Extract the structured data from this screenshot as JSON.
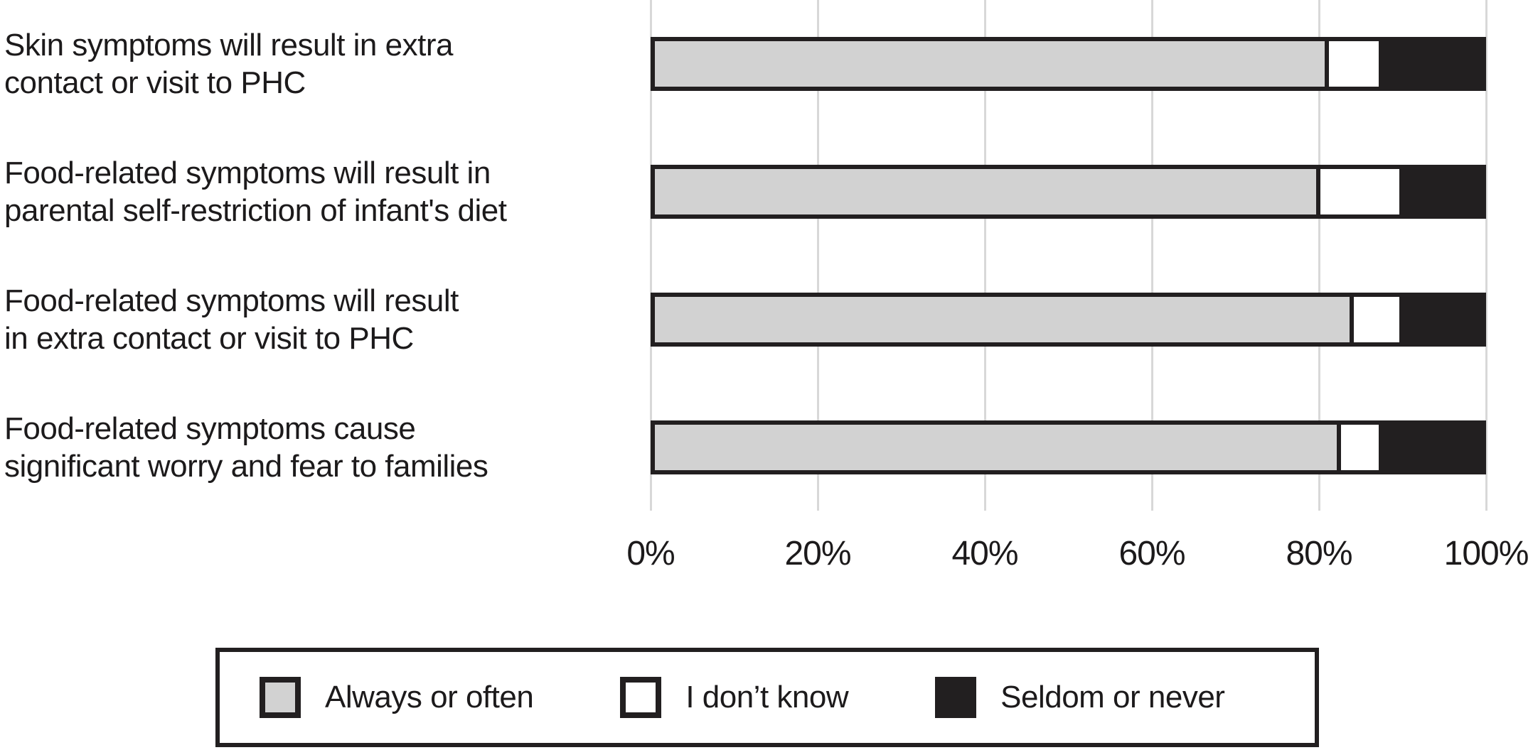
{
  "figure": {
    "description": "Horizontal stacked bar chart of survey agreement statements about infant symptoms, with legend"
  },
  "chart_data": {
    "type": "bar",
    "orientation": "horizontal-stacked",
    "title": "",
    "xlabel": "",
    "ylabel": "",
    "xlim": [
      0,
      100
    ],
    "grid": "vertical",
    "legend_position": "bottom-boxed",
    "categories": [
      {
        "lines": [
          "Skin symptoms will result in extra",
          "contact or visit to PHC"
        ]
      },
      {
        "lines": [
          "Food-related symptoms will result in",
          "parental self-restriction of infant's diet"
        ]
      },
      {
        "lines": [
          "Food-related symptoms will result",
          "in extra contact or visit to PHC"
        ]
      },
      {
        "lines": [
          "Food-related symptoms cause",
          "significant worry and fear to families"
        ]
      }
    ],
    "series": [
      {
        "name": "Always or often",
        "color": "#d2d2d2",
        "values": [
          81,
          80,
          84,
          82.5
        ]
      },
      {
        "name": "I don’t know",
        "color": "#ffffff",
        "values": [
          6.5,
          10,
          6,
          5
        ]
      },
      {
        "name": "Seldom or never",
        "color": "#221f20",
        "values": [
          12.5,
          10,
          10,
          12.5
        ]
      }
    ],
    "ticks": [
      {
        "label": "0%",
        "value": 0
      },
      {
        "label": "20%",
        "value": 20
      },
      {
        "label": "40%",
        "value": 40
      },
      {
        "label": "60%",
        "value": 60
      },
      {
        "label": "80%",
        "value": 80
      },
      {
        "label": "100%",
        "value": 100
      }
    ]
  },
  "colors": {
    "bar_border": "#221f20",
    "gridline": "#d8d8d8",
    "text": "#1c1a1b",
    "background": "#ffffff"
  }
}
